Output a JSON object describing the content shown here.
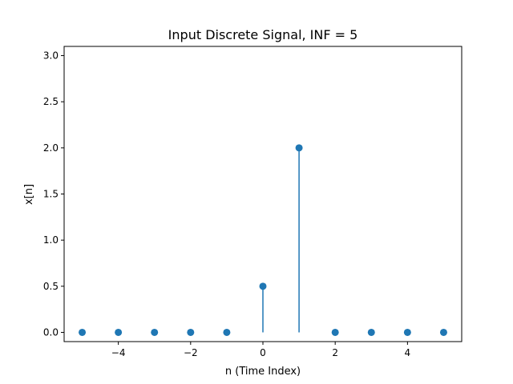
{
  "chart_data": {
    "type": "stem",
    "title": "Input Discrete Signal, INF = 5",
    "xlabel": "n (Time Index)",
    "ylabel": "x[n]",
    "x": [
      -5,
      -4,
      -3,
      -2,
      -1,
      0,
      1,
      2,
      3,
      4,
      5
    ],
    "y": [
      0,
      0,
      0,
      0,
      0,
      0.5,
      2,
      0,
      0,
      0,
      0
    ],
    "xlim": [
      -5.5,
      5.5
    ],
    "ylim": [
      -0.1,
      3.1
    ],
    "xticks": [
      -4,
      -2,
      0,
      2,
      4
    ],
    "xtick_labels": [
      "−4",
      "−2",
      "0",
      "2",
      "4"
    ],
    "yticks": [
      0,
      0.5,
      1,
      1.5,
      2,
      2.5,
      3
    ],
    "ytick_labels": [
      "0.0",
      "0.5",
      "1.0",
      "1.5",
      "2.0",
      "2.5",
      "3.0"
    ],
    "grid": false,
    "color": "#1f77b4"
  }
}
